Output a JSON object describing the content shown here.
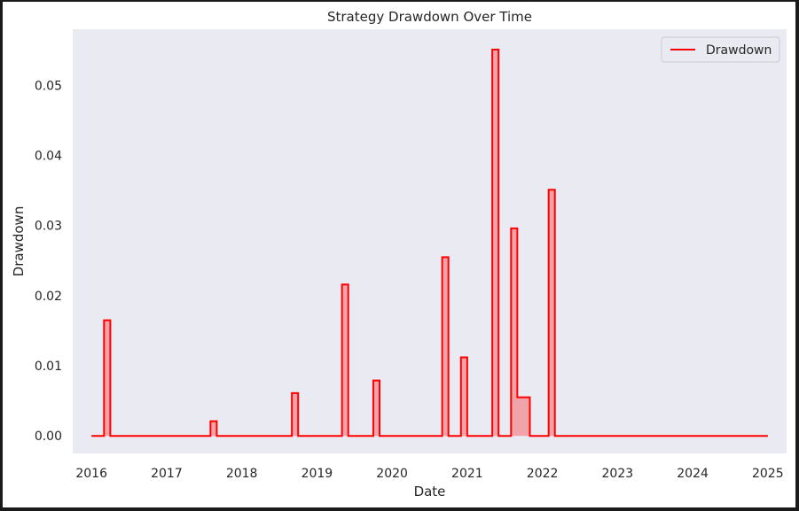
{
  "chart_data": {
    "type": "area",
    "title": "Strategy Drawdown Over Time",
    "xlabel": "Date",
    "ylabel": "Drawdown",
    "xlim": [
      "2015-10-01",
      "2025-04-01"
    ],
    "ylim": [
      -0.0025,
      0.058
    ],
    "x_ticks": [
      "2016",
      "2017",
      "2018",
      "2019",
      "2020",
      "2021",
      "2022",
      "2023",
      "2024",
      "2025"
    ],
    "y_ticks": [
      "0.00",
      "0.01",
      "0.02",
      "0.03",
      "0.04",
      "0.05"
    ],
    "grid": false,
    "background": "#eaeaf2",
    "line_color": "#ff0000",
    "fill_color": "#ff0000",
    "fill_alpha": 0.3,
    "legend": {
      "position": "top-right",
      "entries": [
        "Drawdown"
      ]
    },
    "series": [
      {
        "name": "Drawdown",
        "step": "post",
        "x": [
          "2016-01-01",
          "2016-03-01",
          "2016-04-01",
          "2017-08-01",
          "2017-09-01",
          "2018-09-01",
          "2018-10-01",
          "2019-05-01",
          "2019-06-01",
          "2019-10-01",
          "2019-11-01",
          "2020-09-01",
          "2020-10-01",
          "2020-12-01",
          "2021-01-01",
          "2021-05-01",
          "2021-06-01",
          "2021-08-01",
          "2021-09-01",
          "2021-10-01",
          "2021-11-01",
          "2022-02-01",
          "2022-03-01",
          "2025-01-01"
        ],
        "y": [
          0,
          0.0165,
          0,
          0.0021,
          0,
          0.0061,
          0,
          0.0216,
          0,
          0.0079,
          0,
          0.0255,
          0,
          0.0112,
          0,
          0.0551,
          0,
          0.0296,
          0.0055,
          0.0055,
          0,
          0.0351,
          0,
          0
        ]
      }
    ]
  }
}
